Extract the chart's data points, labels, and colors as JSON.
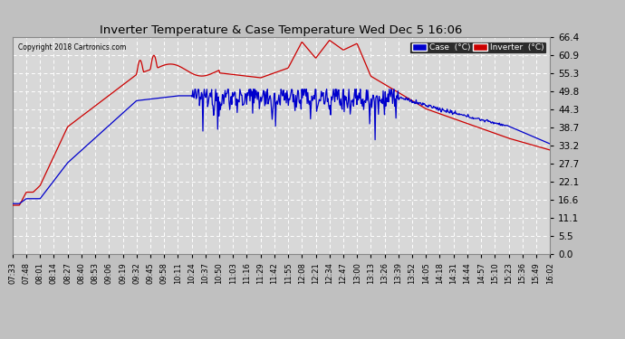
{
  "title": "Inverter Temperature & Case Temperature Wed Dec 5 16:06",
  "copyright": "Copyright 2018 Cartronics.com",
  "yticks": [
    0.0,
    5.5,
    11.1,
    16.6,
    22.1,
    27.7,
    33.2,
    38.7,
    44.3,
    49.8,
    55.3,
    60.9,
    66.4
  ],
  "ylim": [
    0.0,
    66.4
  ],
  "bg_color": "#d8d8d8",
  "grid_color": "#ffffff",
  "legend_case_bg": "#0000cc",
  "legend_inv_bg": "#cc0000",
  "case_line_color": "#0000cc",
  "inv_line_color": "#cc0000",
  "fig_bg_color": "#c0c0c0",
  "xtick_labels": [
    "07:33",
    "07:48",
    "08:01",
    "08:14",
    "08:27",
    "08:40",
    "08:53",
    "09:06",
    "09:19",
    "09:32",
    "09:45",
    "09:58",
    "10:11",
    "10:24",
    "10:37",
    "10:50",
    "11:03",
    "11:16",
    "11:29",
    "11:42",
    "11:55",
    "12:08",
    "12:21",
    "12:34",
    "12:47",
    "13:00",
    "13:13",
    "13:26",
    "13:39",
    "13:52",
    "14:05",
    "14:18",
    "14:31",
    "14:44",
    "14:57",
    "15:10",
    "15:23",
    "15:36",
    "15:49",
    "16:02"
  ]
}
